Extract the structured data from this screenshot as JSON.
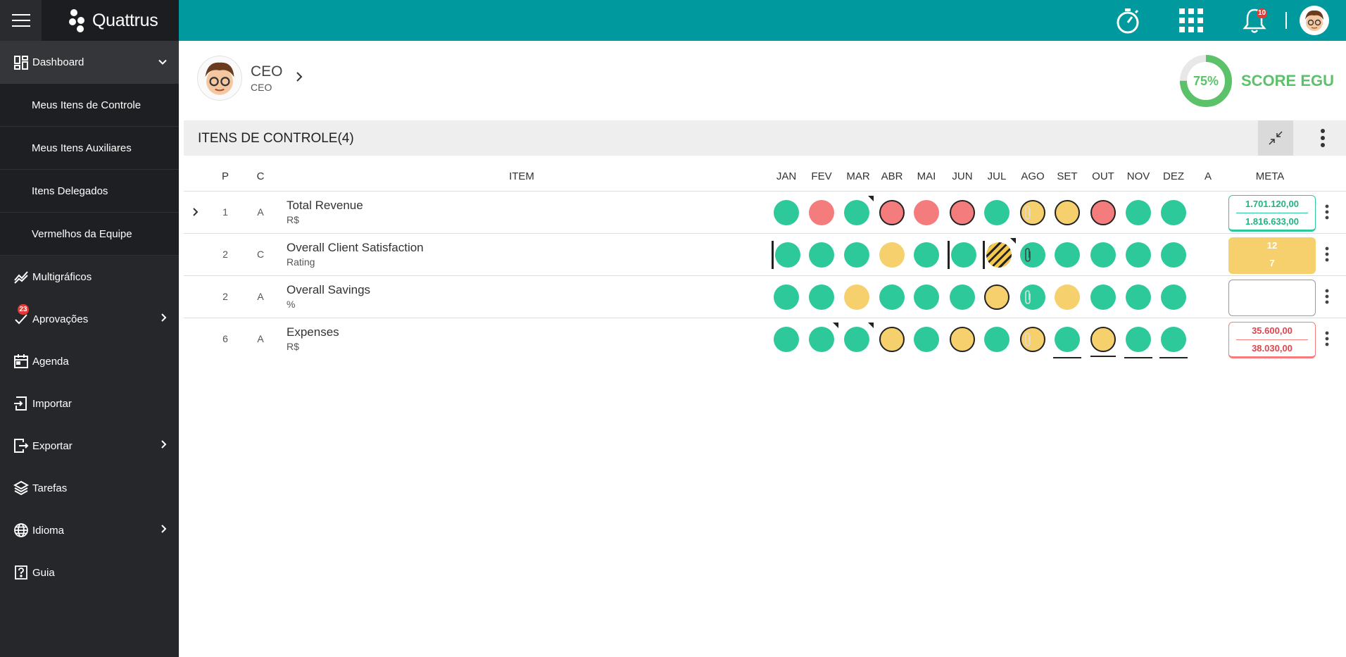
{
  "app": {
    "logo_text": "Quattrus"
  },
  "topbar": {
    "notifications_count": "10"
  },
  "sidebar": {
    "items": [
      {
        "label": "Dashboard",
        "icon": "dashboard-icon"
      },
      {
        "label": "Multigráficos",
        "icon": "chart-line-icon"
      },
      {
        "label": "Aprovações",
        "icon": "approval-icon",
        "badge": "23"
      },
      {
        "label": "Agenda",
        "icon": "calendar-icon"
      },
      {
        "label": "Importar",
        "icon": "import-icon"
      },
      {
        "label": "Exportar",
        "icon": "export-icon"
      },
      {
        "label": "Tarefas",
        "icon": "layers-icon"
      },
      {
        "label": "Idioma",
        "icon": "globe-icon"
      },
      {
        "label": "Guia",
        "icon": "help-icon"
      }
    ],
    "dashboard_sub": [
      "Meus Itens de Controle",
      "Meus Itens Auxiliares",
      "Itens Delegados",
      "Vermelhos da Equipe"
    ]
  },
  "profile": {
    "name": "CEO",
    "role": "CEO"
  },
  "score": {
    "percent_text": "75%",
    "percent": 75,
    "label": "SCORE EGU",
    "color": "#5cc26a"
  },
  "section": {
    "title": "ITENS DE CONTROLE(4)"
  },
  "table": {
    "headers": {
      "p": "P",
      "c": "C",
      "item": "ITEM",
      "a": "A",
      "meta": "META"
    },
    "months": [
      "JAN",
      "FEV",
      "MAR",
      "ABR",
      "MAI",
      "JUN",
      "JUL",
      "AGO",
      "SET",
      "OUT",
      "NOV",
      "DEZ"
    ],
    "rows": [
      {
        "p": "1",
        "c": "A",
        "name": "Total Revenue",
        "unit": "R$",
        "meta1": "1.701.120,00",
        "meta2": "1.816.633,00"
      },
      {
        "p": "2",
        "c": "C",
        "name": "Overall Client Satisfaction",
        "unit": "Rating",
        "meta1": "12",
        "meta2": "7"
      },
      {
        "p": "2",
        "c": "A",
        "name": "Overall Savings",
        "unit": "%",
        "meta1": "",
        "meta2": ""
      },
      {
        "p": "6",
        "c": "A",
        "name": "Expenses",
        "unit": "R$",
        "meta1": "35.600,00",
        "meta2": "38.030,00"
      }
    ]
  },
  "colors": {
    "green": "#2ec99b",
    "red": "#f47c7c",
    "yellow": "#f5d06d",
    "topbar": "#00999e",
    "sidebar": "#26272b"
  }
}
